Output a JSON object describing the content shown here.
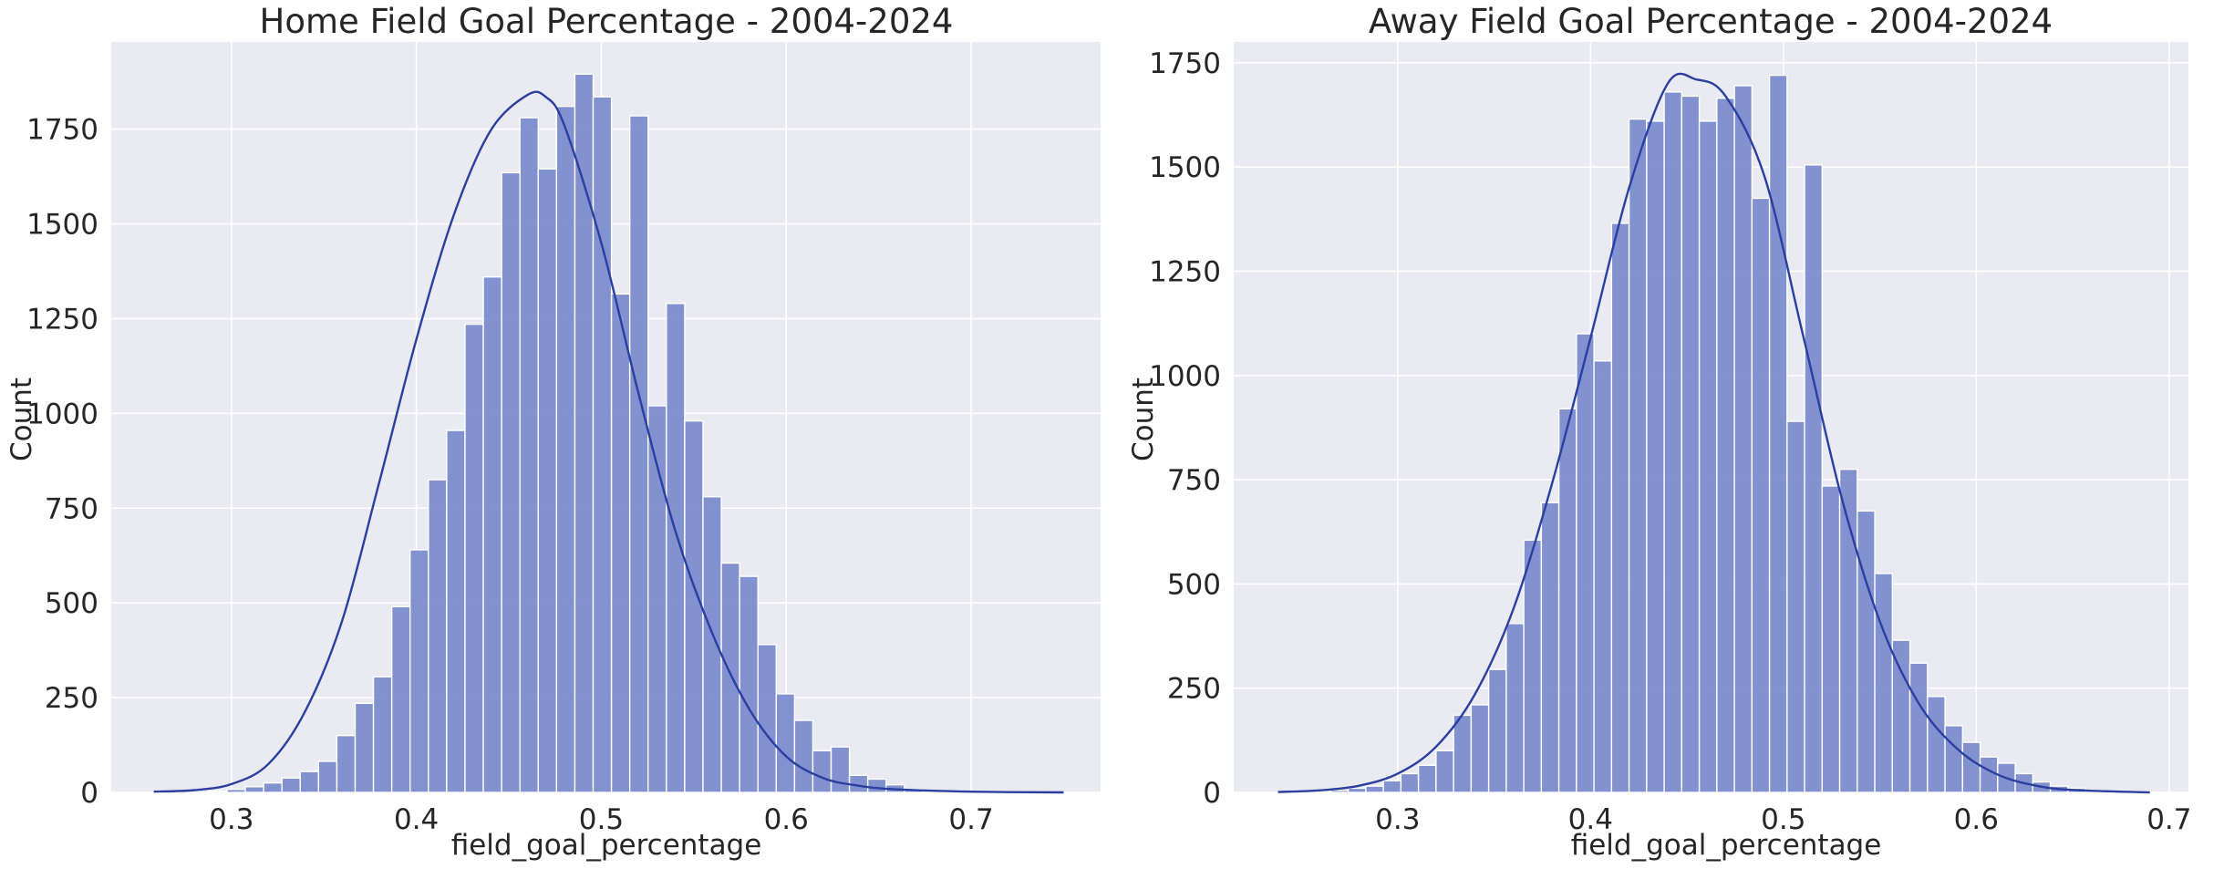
{
  "colors": {
    "background": "#eaeaf2",
    "bar": "#7787cc",
    "bar_edge": "#ffffff",
    "kde": "#2a3fa0",
    "grid": "#ffffff",
    "text": "#262626"
  },
  "chart_data": [
    {
      "type": "bar",
      "subtype": "histogram with kde line",
      "title": "Home Field Goal Percentage - 2004-2024",
      "xlabel": "field_goal_percentage",
      "ylabel": "Count",
      "grid": true,
      "xlim": [
        0.235,
        0.77
      ],
      "ylim": [
        0,
        1980
      ],
      "xticks": [
        0.3,
        0.4,
        0.5,
        0.6,
        0.7
      ],
      "xtick_labels": [
        "0.3",
        "0.4",
        "0.5",
        "0.6",
        "0.7"
      ],
      "yticks": [
        0,
        250,
        500,
        750,
        1000,
        1250,
        1500,
        1750
      ],
      "ytick_labels": [
        "0",
        "250",
        "500",
        "750",
        "1000",
        "1250",
        "1500",
        "1750"
      ],
      "bin_start": 0.258,
      "bin_width": 0.0099,
      "values": [
        0,
        0,
        0,
        3,
        8,
        15,
        25,
        38,
        55,
        82,
        150,
        235,
        305,
        490,
        640,
        825,
        955,
        1235,
        1360,
        1635,
        1780,
        1645,
        1810,
        1895,
        1835,
        1315,
        1785,
        1020,
        1290,
        980,
        780,
        605,
        570,
        390,
        260,
        190,
        110,
        120,
        45,
        35,
        20,
        8,
        3,
        2,
        1,
        1,
        0,
        0,
        0,
        0
      ],
      "kde": {
        "x": [
          0.258,
          0.28,
          0.3,
          0.32,
          0.34,
          0.36,
          0.38,
          0.4,
          0.42,
          0.44,
          0.46,
          0.47,
          0.48,
          0.5,
          0.52,
          0.54,
          0.56,
          0.58,
          0.6,
          0.62,
          0.64,
          0.66,
          0.7,
          0.75
        ],
        "y": [
          2,
          6,
          22,
          75,
          215,
          455,
          820,
          1195,
          1520,
          1745,
          1840,
          1835,
          1760,
          1450,
          1055,
          690,
          420,
          220,
          95,
          38,
          17,
          8,
          2,
          0
        ]
      }
    },
    {
      "type": "bar",
      "subtype": "histogram with kde line",
      "title": "Away Field Goal Percentage - 2004-2024",
      "xlabel": "field_goal_percentage",
      "ylabel": "Count",
      "grid": true,
      "xlim": [
        0.215,
        0.71
      ],
      "ylim": [
        0,
        1800
      ],
      "xticks": [
        0.3,
        0.4,
        0.5,
        0.6,
        0.7
      ],
      "xtick_labels": [
        "0.3",
        "0.4",
        "0.5",
        "0.6",
        "0.7"
      ],
      "yticks": [
        0,
        250,
        500,
        750,
        1000,
        1250,
        1500,
        1750
      ],
      "ytick_labels": [
        "0",
        "250",
        "500",
        "750",
        "1000",
        "1250",
        "1500",
        "1750"
      ],
      "bin_start": 0.238,
      "bin_width": 0.0091,
      "values": [
        0,
        0,
        2,
        5,
        10,
        15,
        28,
        45,
        65,
        100,
        185,
        210,
        295,
        405,
        605,
        695,
        920,
        1100,
        1035,
        1365,
        1615,
        1610,
        1680,
        1670,
        1610,
        1665,
        1695,
        1425,
        1720,
        890,
        1505,
        735,
        775,
        675,
        525,
        365,
        310,
        230,
        160,
        120,
        85,
        70,
        45,
        25,
        15,
        10,
        5,
        2,
        1,
        1
      ],
      "kde": {
        "x": [
          0.238,
          0.26,
          0.28,
          0.3,
          0.32,
          0.34,
          0.36,
          0.38,
          0.4,
          0.42,
          0.44,
          0.455,
          0.47,
          0.49,
          0.51,
          0.53,
          0.55,
          0.57,
          0.59,
          0.61,
          0.63,
          0.65,
          0.69
        ],
        "y": [
          1,
          5,
          16,
          45,
          110,
          235,
          440,
          740,
          1090,
          1450,
          1700,
          1710,
          1670,
          1480,
          1100,
          710,
          410,
          215,
          105,
          45,
          17,
          6,
          0
        ]
      }
    }
  ]
}
